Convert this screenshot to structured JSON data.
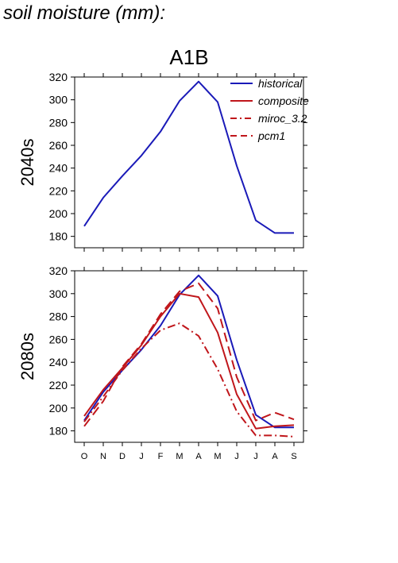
{
  "page": {
    "title": "soil moisture (mm):"
  },
  "chart_data": [
    {
      "type": "line",
      "title": "A1B",
      "ylabel": "2040s",
      "xlabel": "",
      "categories": [
        "O",
        "N",
        "D",
        "J",
        "F",
        "M",
        "A",
        "M",
        "J",
        "J",
        "A",
        "S"
      ],
      "ylim": [
        170,
        320
      ],
      "yticks": [
        180,
        200,
        220,
        240,
        260,
        280,
        300,
        320
      ],
      "show_xtick_labels": false,
      "grid": false,
      "legend": {
        "placement": "top-right",
        "entries": [
          {
            "name": "historical",
            "color": "#1a1ab8",
            "dash": "solid"
          },
          {
            "name": "composite",
            "color": "#c0161b",
            "dash": "solid"
          },
          {
            "name": "miroc_3.2",
            "color": "#c0161b",
            "dash": "dashdot"
          },
          {
            "name": "pcm1",
            "color": "#c0161b",
            "dash": "dash"
          }
        ]
      },
      "series": [
        {
          "name": "historical",
          "color": "#1a1ab8",
          "dash": "solid",
          "values": [
            189,
            214,
            233,
            251,
            272,
            299,
            316,
            298,
            242,
            194,
            183,
            183
          ]
        }
      ]
    },
    {
      "type": "line",
      "title": "",
      "ylabel": "2080s",
      "xlabel": "",
      "categories": [
        "O",
        "N",
        "D",
        "J",
        "F",
        "M",
        "A",
        "M",
        "J",
        "J",
        "A",
        "S"
      ],
      "ylim": [
        170,
        320
      ],
      "yticks": [
        180,
        200,
        220,
        240,
        260,
        280,
        300,
        320
      ],
      "show_xtick_labels": true,
      "grid": false,
      "series": [
        {
          "name": "historical",
          "color": "#1a1ab8",
          "dash": "solid",
          "values": [
            189,
            214,
            233,
            251,
            272,
            299,
            316,
            298,
            242,
            194,
            183,
            183
          ]
        },
        {
          "name": "composite",
          "color": "#c0161b",
          "dash": "solid",
          "values": [
            193,
            216,
            235,
            255,
            280,
            300,
            297,
            266,
            212,
            182,
            184,
            185
          ]
        },
        {
          "name": "miroc_3.2",
          "color": "#c0161b",
          "dash": "dashdot",
          "values": [
            188,
            210,
            233,
            252,
            268,
            274,
            263,
            234,
            197,
            176,
            176,
            175
          ]
        },
        {
          "name": "pcm1",
          "color": "#c0161b",
          "dash": "dash",
          "values": [
            184,
            206,
            236,
            256,
            282,
            302,
            309,
            287,
            227,
            189,
            196,
            190
          ]
        }
      ]
    }
  ]
}
